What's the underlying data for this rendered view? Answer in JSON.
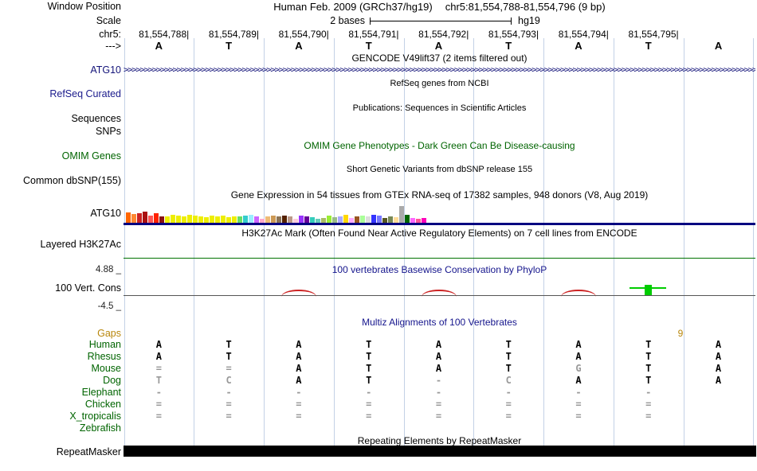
{
  "header": {
    "assembly": "Human Feb. 2009 (GRCh37/hg19)",
    "position": "chr5:81,554,788-81,554,796 (9 bp)",
    "scale_value": "2 bases",
    "assembly_short": "hg19"
  },
  "left_labels": {
    "window_position": "Window Position",
    "scale": "Scale",
    "chrom": "chr5:",
    "strand": "--->",
    "sequences": "Sequences",
    "snps": "SNPs"
  },
  "ruler": {
    "numbers": [
      "81,554,788",
      "81,554,789",
      "81,554,790",
      "81,554,791",
      "81,554,792",
      "81,554,793",
      "81,554,794",
      "81,554,795"
    ],
    "tick_char": "|"
  },
  "sequence_bases": [
    "A",
    "T",
    "A",
    "T",
    "A",
    "T",
    "A",
    "T",
    "A"
  ],
  "tracks": {
    "gencode": {
      "title": "GENCODE V49lift37 (2 items filtered out)",
      "item": "ATG10",
      "arrow_char": ">"
    },
    "refseq": {
      "title": "RefSeq genes from NCBI",
      "label": "RefSeq Curated"
    },
    "publications": {
      "title": "Publications: Sequences in Scientific Articles"
    },
    "omim": {
      "title": "OMIM Gene Phenotypes - Dark Green Can Be Disease-causing",
      "label": "OMIM Genes"
    },
    "dbsnp": {
      "title": "Short Genetic Variants from dbSNP release 155",
      "label": "Common dbSNP(155)"
    },
    "gtex": {
      "title": "Gene Expression in 54 tissues from GTEx RNA-seq of 17382 samples, 948 donors (V8, Aug 2019)",
      "item": "ATG10",
      "bars": [
        {
          "c": "#FF6600",
          "h": 13
        },
        {
          "c": "#FF8833",
          "h": 11
        },
        {
          "c": "#CC2222",
          "h": 12
        },
        {
          "c": "#AA1111",
          "h": 14
        },
        {
          "c": "#FF5555",
          "h": 9
        },
        {
          "c": "#FF2200",
          "h": 12
        },
        {
          "c": "#881111",
          "h": 8
        },
        {
          "c": "#EEEE00",
          "h": 8
        },
        {
          "c": "#EEEE00",
          "h": 10
        },
        {
          "c": "#EEEE00",
          "h": 9
        },
        {
          "c": "#EEEE00",
          "h": 8
        },
        {
          "c": "#EEEE00",
          "h": 10
        },
        {
          "c": "#EEEE00",
          "h": 9
        },
        {
          "c": "#EEEE00",
          "h": 8
        },
        {
          "c": "#EEEE00",
          "h": 7
        },
        {
          "c": "#EEEE00",
          "h": 9
        },
        {
          "c": "#EEEE00",
          "h": 8
        },
        {
          "c": "#EEEE00",
          "h": 9
        },
        {
          "c": "#EEEE00",
          "h": 7
        },
        {
          "c": "#EEEE00",
          "h": 8
        },
        {
          "c": "#66DD66",
          "h": 8
        },
        {
          "c": "#33CCCC",
          "h": 9
        },
        {
          "c": "#99EEFF",
          "h": 10
        },
        {
          "c": "#CC66FF",
          "h": 8
        },
        {
          "c": "#FFAACC",
          "h": 5
        },
        {
          "c": "#EEBB77",
          "h": 8
        },
        {
          "c": "#CC9955",
          "h": 9
        },
        {
          "c": "#8B7355",
          "h": 8
        },
        {
          "c": "#552200",
          "h": 9
        },
        {
          "c": "#BB9988",
          "h": 8
        },
        {
          "c": "#FFCCDD",
          "h": 5
        },
        {
          "c": "#9933FF",
          "h": 9
        },
        {
          "c": "#660099",
          "h": 8
        },
        {
          "c": "#33CCBB",
          "h": 7
        },
        {
          "c": "#66CCBB",
          "h": 5
        },
        {
          "c": "#AABB66",
          "h": 6
        },
        {
          "c": "#99EE33",
          "h": 9
        },
        {
          "c": "#99BB88",
          "h": 7
        },
        {
          "c": "#AAAAFF",
          "h": 8
        },
        {
          "c": "#FFD700",
          "h": 10
        },
        {
          "c": "#FFAAFF",
          "h": 6
        },
        {
          "c": "#995522",
          "h": 8
        },
        {
          "c": "#AAFF99",
          "h": 9
        },
        {
          "c": "#DDDDDD",
          "h": 8
        },
        {
          "c": "#3333FF",
          "h": 10
        },
        {
          "c": "#7777FF",
          "h": 9
        },
        {
          "c": "#555522",
          "h": 6
        },
        {
          "c": "#778855",
          "h": 8
        },
        {
          "c": "#FFDD99",
          "h": 7
        },
        {
          "c": "#AAAAAA",
          "h": 21
        },
        {
          "c": "#006600",
          "h": 10
        },
        {
          "c": "#FF66FF",
          "h": 6
        },
        {
          "c": "#FF5599",
          "h": 5
        },
        {
          "c": "#FF00BB",
          "h": 6
        }
      ]
    },
    "h3k27ac": {
      "title": "H3K27Ac Mark (Often Found Near Active Regulatory Elements) on 7 cell lines from ENCODE",
      "label": "Layered H3K27Ac"
    },
    "phylop": {
      "title": "100 vertebrates Basewise Conservation by PhyloP",
      "label": "100 Vert. Cons",
      "axis_max": "4.88 _",
      "axis_min": "-4.5 _"
    },
    "multiz": {
      "title": "Multiz Alignments of 100 Vertebrates",
      "gaps_label": "Gaps",
      "gap_size": "9",
      "rows": [
        {
          "name": "Human",
          "cells": [
            "A",
            "T",
            "A",
            "T",
            "A",
            "T",
            "A",
            "T",
            "A"
          ],
          "muted": []
        },
        {
          "name": "Rhesus",
          "cells": [
            "A",
            "T",
            "A",
            "T",
            "A",
            "T",
            "A",
            "T",
            "A"
          ],
          "muted": []
        },
        {
          "name": "Mouse",
          "cells": [
            "=",
            "=",
            "A",
            "T",
            "A",
            "T",
            "G",
            "T",
            "A"
          ],
          "muted": [
            6
          ]
        },
        {
          "name": "Dog",
          "cells": [
            "T",
            "C",
            "A",
            "T",
            "-",
            "C",
            "A",
            "T",
            "A"
          ],
          "muted": [
            0,
            1,
            5
          ]
        },
        {
          "name": "Elephant",
          "cells": [
            "-",
            "-",
            "-",
            "-",
            "-",
            "-",
            "-",
            "-",
            ""
          ],
          "muted": []
        },
        {
          "name": "Chicken",
          "cells": [
            "=",
            "=",
            "=",
            "=",
            "=",
            "=",
            "=",
            "=",
            ""
          ],
          "muted": []
        },
        {
          "name": "X_tropicalis",
          "cells": [
            "=",
            "=",
            "=",
            "=",
            "=",
            "=",
            "=",
            "=",
            ""
          ],
          "muted": []
        },
        {
          "name": "Zebrafish",
          "cells": [
            "",
            "",
            "",
            "",
            "",
            "",
            "",
            "",
            ""
          ],
          "muted": []
        }
      ]
    },
    "repeatmasker": {
      "title": "Repeating Elements by RepeatMasker",
      "label": "RepeatMasker"
    }
  },
  "colors": {
    "gencode_blue": "#14147A",
    "refseq_navy": "#1A1A8C",
    "navy_title": "#14148C",
    "omim_green": "#006400",
    "species_green": "#006400",
    "gaps_orange": "#B8860B",
    "guide_blue": "#AABDDB",
    "conservation_red": "#CC2222",
    "conservation_green": "#00CC00",
    "repeat_black": "#000000"
  }
}
